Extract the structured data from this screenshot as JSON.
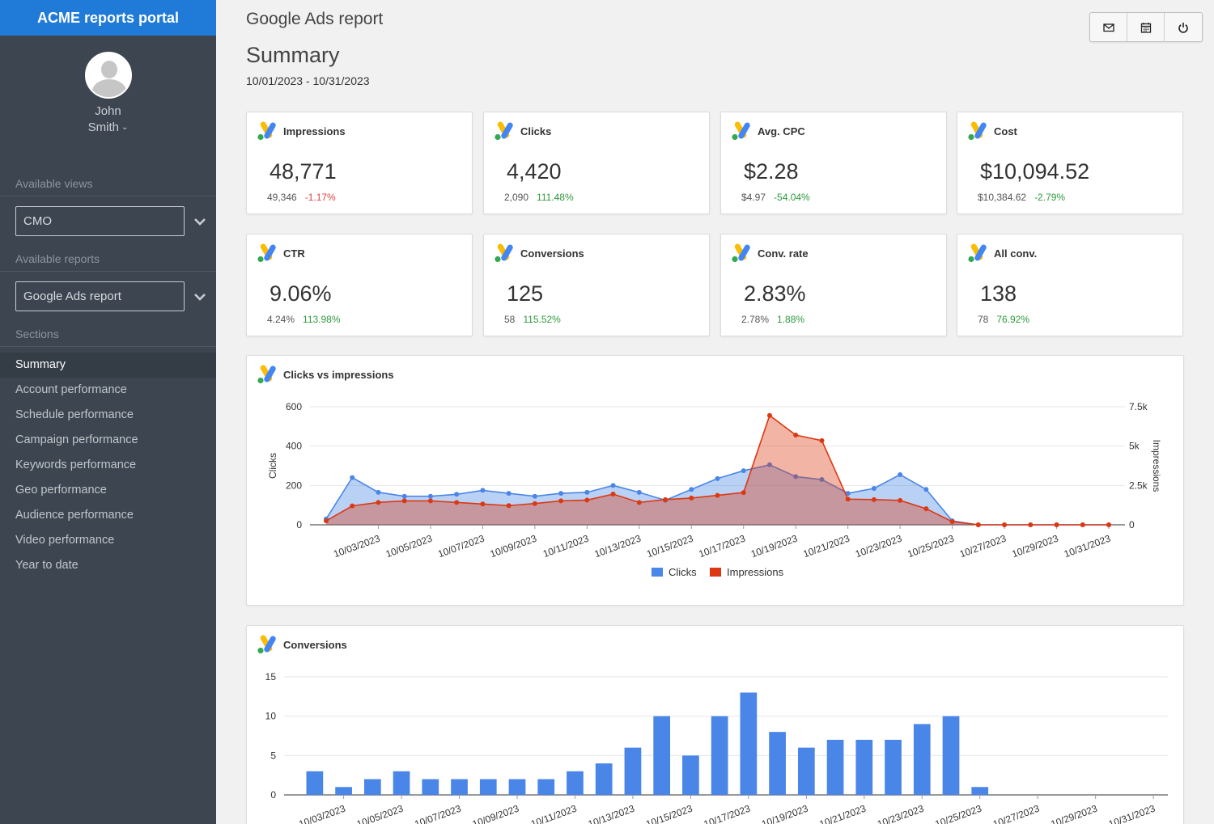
{
  "app": {
    "brand": "ACME reports portal"
  },
  "user": {
    "first_name": "John",
    "last_name": "Smith"
  },
  "sidebar": {
    "views_label": "Available views",
    "view_selected": "CMO",
    "reports_label": "Available reports",
    "report_selected": "Google Ads report",
    "sections_label": "Sections",
    "items": [
      {
        "label": "Summary"
      },
      {
        "label": "Account performance"
      },
      {
        "label": "Schedule performance"
      },
      {
        "label": "Campaign performance"
      },
      {
        "label": "Keywords performance"
      },
      {
        "label": "Geo performance"
      },
      {
        "label": "Audience performance"
      },
      {
        "label": "Video performance"
      },
      {
        "label": "Year to date"
      }
    ]
  },
  "header": {
    "report_title": "Google Ads report",
    "page_title": "Summary",
    "date_range": "10/01/2023 - 10/31/2023"
  },
  "toolbar": {
    "icons": [
      "mail-icon",
      "calendar-icon",
      "power-icon"
    ]
  },
  "kpis": [
    {
      "label": "Impressions",
      "value": "48,771",
      "previous": "49,346",
      "delta": "-1.17%",
      "trend": "neg"
    },
    {
      "label": "Clicks",
      "value": "4,420",
      "previous": "2,090",
      "delta": "111.48%",
      "trend": "pos"
    },
    {
      "label": "Avg. CPC",
      "value": "$2.28",
      "previous": "$4.97",
      "delta": "-54.04%",
      "trend": "pos"
    },
    {
      "label": "Cost",
      "value": "$10,094.52",
      "previous": "$10,384.62",
      "delta": "-2.79%",
      "trend": "pos"
    },
    {
      "label": "CTR",
      "value": "9.06%",
      "previous": "4.24%",
      "delta": "113.98%",
      "trend": "pos"
    },
    {
      "label": "Conversions",
      "value": "125",
      "previous": "58",
      "delta": "115.52%",
      "trend": "pos"
    },
    {
      "label": "Conv. rate",
      "value": "2.83%",
      "previous": "2.78%",
      "delta": "1.88%",
      "trend": "pos"
    },
    {
      "label": "All conv.",
      "value": "138",
      "previous": "78",
      "delta": "76.92%",
      "trend": "pos"
    }
  ],
  "colors": {
    "clicks": "#4a86e8",
    "impressions": "#dc3912",
    "bar": "#4a86e8",
    "positive": "#2f9a3e",
    "negative": "#e0433f"
  },
  "chart_data": [
    {
      "type": "area",
      "title": "Clicks vs impressions",
      "x": [
        "10/01/2023",
        "10/02/2023",
        "10/03/2023",
        "10/04/2023",
        "10/05/2023",
        "10/06/2023",
        "10/07/2023",
        "10/08/2023",
        "10/09/2023",
        "10/10/2023",
        "10/11/2023",
        "10/12/2023",
        "10/13/2023",
        "10/14/2023",
        "10/15/2023",
        "10/16/2023",
        "10/17/2023",
        "10/18/2023",
        "10/19/2023",
        "10/20/2023",
        "10/21/2023",
        "10/22/2023",
        "10/23/2023",
        "10/24/2023",
        "10/25/2023",
        "10/26/2023",
        "10/27/2023",
        "10/28/2023",
        "10/29/2023",
        "10/30/2023",
        "10/31/2023"
      ],
      "x_tick_labels": [
        "10/03/2023",
        "10/05/2023",
        "10/07/2023",
        "10/09/2023",
        "10/11/2023",
        "10/13/2023",
        "10/15/2023",
        "10/17/2023",
        "10/19/2023",
        "10/21/2023",
        "10/23/2023",
        "10/25/2023",
        "10/27/2023",
        "10/29/2023",
        "10/31/2023"
      ],
      "series": [
        {
          "name": "Clicks",
          "axis": "left",
          "values": [
            30,
            240,
            165,
            145,
            145,
            155,
            175,
            160,
            145,
            160,
            165,
            200,
            165,
            125,
            180,
            235,
            275,
            305,
            245,
            230,
            160,
            185,
            255,
            180,
            20,
            0,
            0,
            0,
            0,
            0,
            0
          ]
        },
        {
          "name": "Impressions",
          "axis": "right",
          "values": [
            250,
            1200,
            1420,
            1520,
            1520,
            1420,
            1320,
            1220,
            1350,
            1520,
            1570,
            1950,
            1420,
            1600,
            1700,
            1870,
            2050,
            6950,
            5700,
            5350,
            1630,
            1600,
            1550,
            1020,
            200,
            0,
            0,
            0,
            0,
            0,
            0
          ]
        }
      ],
      "ylabel_left": "Clicks",
      "ylim_left": [
        0,
        600
      ],
      "yticks_left": [
        "0",
        "200",
        "400",
        "600"
      ],
      "ylabel_right": "Impressions",
      "ylim_right": [
        0,
        7500
      ],
      "yticks_right": [
        "0",
        "2.5k",
        "5k",
        "7.5k"
      ],
      "legend": [
        "Clicks",
        "Impressions"
      ],
      "legend_position": "bottom",
      "grid": true
    },
    {
      "type": "bar",
      "title": "Conversions",
      "categories": [
        "10/02/2023",
        "10/03/2023",
        "10/04/2023",
        "10/05/2023",
        "10/06/2023",
        "10/07/2023",
        "10/08/2023",
        "10/09/2023",
        "10/10/2023",
        "10/11/2023",
        "10/12/2023",
        "10/13/2023",
        "10/14/2023",
        "10/15/2023",
        "10/16/2023",
        "10/17/2023",
        "10/18/2023",
        "10/19/2023",
        "10/20/2023",
        "10/21/2023",
        "10/22/2023",
        "10/23/2023",
        "10/24/2023",
        "10/25/2023",
        "10/26/2023",
        "10/27/2023",
        "10/28/2023",
        "10/29/2023",
        "10/30/2023",
        "10/31/2023"
      ],
      "values": [
        3,
        1,
        2,
        3,
        2,
        2,
        2,
        2,
        2,
        3,
        4,
        6,
        10,
        5,
        10,
        13,
        8,
        6,
        7,
        7,
        7,
        9,
        10,
        1,
        0,
        0,
        0,
        0,
        0,
        0
      ],
      "x_tick_labels": [
        "10/03/2023",
        "10/05/2023",
        "10/07/2023",
        "10/09/2023",
        "10/11/2023",
        "10/13/2023",
        "10/15/2023",
        "10/17/2023",
        "10/19/2023",
        "10/21/2023",
        "10/23/2023",
        "10/25/2023",
        "10/27/2023",
        "10/29/2023",
        "10/31/2023"
      ],
      "ylim": [
        0,
        15
      ],
      "yticks": [
        "0",
        "5",
        "10",
        "15"
      ],
      "grid": true
    }
  ]
}
